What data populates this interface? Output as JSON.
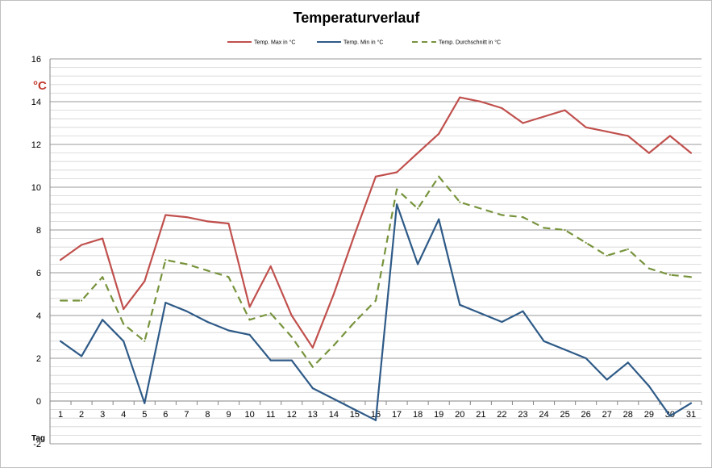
{
  "chart_data": {
    "type": "line",
    "title": "Temperaturverlauf",
    "ylabel": "°C",
    "xlabel": "Tag",
    "ylim": [
      -2,
      16
    ],
    "yticks": [
      16,
      14,
      12,
      10,
      8,
      6,
      4,
      2,
      0,
      -2
    ],
    "minor_grid_step": 0.4,
    "legend_position": "top-center",
    "categories": [
      "1",
      "2",
      "3",
      "4",
      "5",
      "6",
      "7",
      "8",
      "9",
      "10",
      "11",
      "12",
      "13",
      "14",
      "15",
      "16",
      "17",
      "18",
      "19",
      "20",
      "21",
      "22",
      "23",
      "24",
      "25",
      "26",
      "27",
      "28",
      "29",
      "30",
      "31"
    ],
    "series": [
      {
        "name": "Temp. Max in °C",
        "color": "#c0504d",
        "dash": "solid",
        "values": [
          6.6,
          7.3,
          7.6,
          4.3,
          5.6,
          8.7,
          8.6,
          8.4,
          8.3,
          4.4,
          6.3,
          4.0,
          2.5,
          5.0,
          7.8,
          10.5,
          10.7,
          11.6,
          12.5,
          14.2,
          14.0,
          13.7,
          13.0,
          13.3,
          13.6,
          12.8,
          12.6,
          12.4,
          11.6,
          12.4,
          11.6
        ]
      },
      {
        "name": "Temp. Min in °C",
        "color": "#2e5a87",
        "dash": "solid",
        "values": [
          2.8,
          2.1,
          3.8,
          2.8,
          -0.1,
          4.6,
          4.2,
          3.7,
          3.3,
          3.1,
          1.9,
          1.9,
          0.6,
          0.1,
          -0.4,
          -0.9,
          9.2,
          6.4,
          8.5,
          4.5,
          4.1,
          3.7,
          4.2,
          2.8,
          2.4,
          2.0,
          1.0,
          1.8,
          0.7,
          -0.7,
          -0.1
        ]
      },
      {
        "name": "Temp. Durchschnitt in °C",
        "color": "#77933c",
        "dash": "dashed",
        "values": [
          4.7,
          4.7,
          5.8,
          3.6,
          2.8,
          6.6,
          6.4,
          6.1,
          5.8,
          3.8,
          4.1,
          3.0,
          1.6,
          2.6,
          3.7,
          4.7,
          9.9,
          9.0,
          10.5,
          9.3,
          9.0,
          8.7,
          8.6,
          8.1,
          8.0,
          7.4,
          6.8,
          7.1,
          6.2,
          5.9,
          5.8
        ]
      }
    ]
  }
}
